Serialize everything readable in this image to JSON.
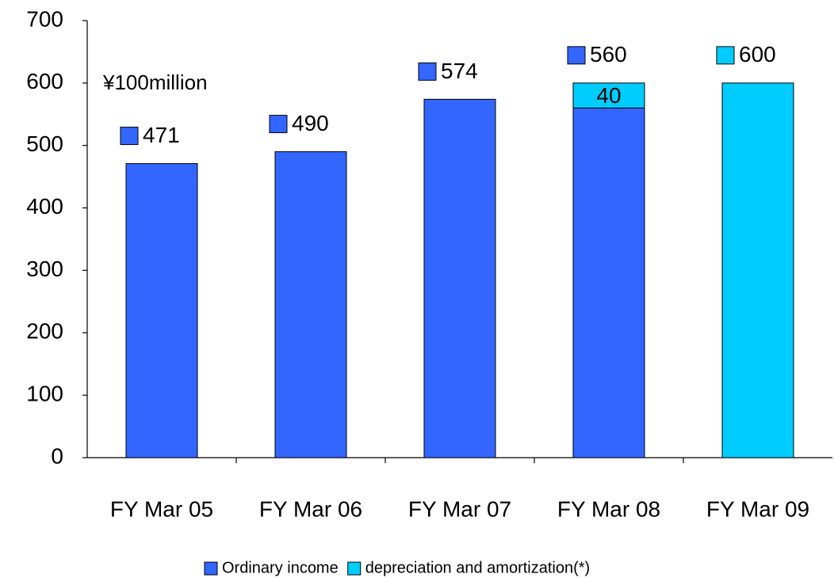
{
  "chart_data": {
    "type": "bar",
    "stacked": true,
    "annotation": "¥100million",
    "categories": [
      "FY Mar 05",
      "FY Mar 06",
      "FY Mar 07",
      "FY Mar 08",
      "FY Mar 09"
    ],
    "series": [
      {
        "name": "Ordinary income",
        "color": "#3366ff",
        "values": [
          471,
          490,
          574,
          560,
          null
        ]
      },
      {
        "name": "depreciation and amortization(*)",
        "color": "#00ccff",
        "values": [
          null,
          null,
          null,
          40,
          600
        ]
      }
    ],
    "ylim": [
      0,
      700
    ],
    "yticks": [
      0,
      100,
      200,
      300,
      400,
      500,
      600,
      700
    ],
    "grid": false,
    "legend": "bottom"
  }
}
